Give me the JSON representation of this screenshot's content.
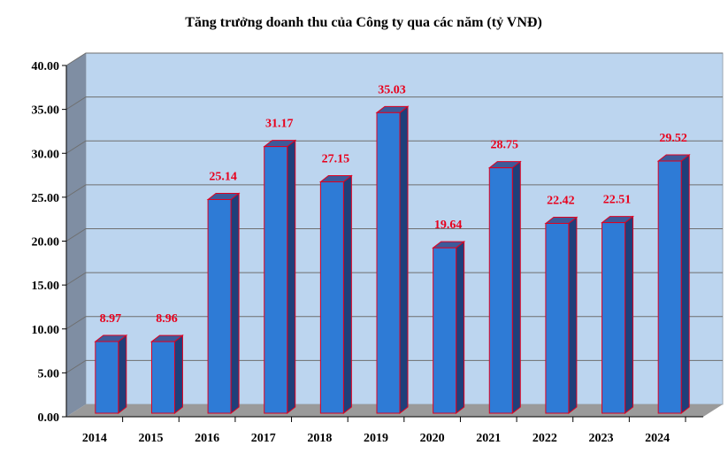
{
  "chart_data": {
    "type": "bar",
    "title": "Tăng trưởng doanh thu của Công ty qua các năm (tỷ VNĐ)",
    "categories": [
      "2014",
      "2015",
      "2016",
      "2017",
      "2018",
      "2019",
      "2020",
      "2021",
      "2022",
      "2023",
      "2024"
    ],
    "values": [
      8.97,
      8.96,
      25.14,
      31.17,
      27.15,
      35.03,
      19.64,
      28.75,
      22.42,
      22.51,
      29.52
    ],
    "data_labels": [
      "8.97",
      "8.96",
      "25.14",
      "31.17",
      "27.15",
      "35.03",
      "19.64",
      "28.75",
      "22.42",
      "22.51",
      "29.52"
    ],
    "ylim": [
      0,
      40
    ],
    "y_ticks": [
      "0.00",
      "5.00",
      "10.00",
      "15.00",
      "20.00",
      "25.00",
      "30.00",
      "35.00",
      "40.00"
    ],
    "grid": true,
    "style": "3d-column",
    "colors": {
      "bar_front": "#2e7bd6",
      "bar_side": "#1f3f7a",
      "bar_top": "#3d5a9a",
      "bar_outline": "#e00020",
      "plot_background": "#bcd5ef",
      "left_wall": "#7f8ea3",
      "floor": "#9a9a9a",
      "data_label": "#e8001c"
    }
  }
}
